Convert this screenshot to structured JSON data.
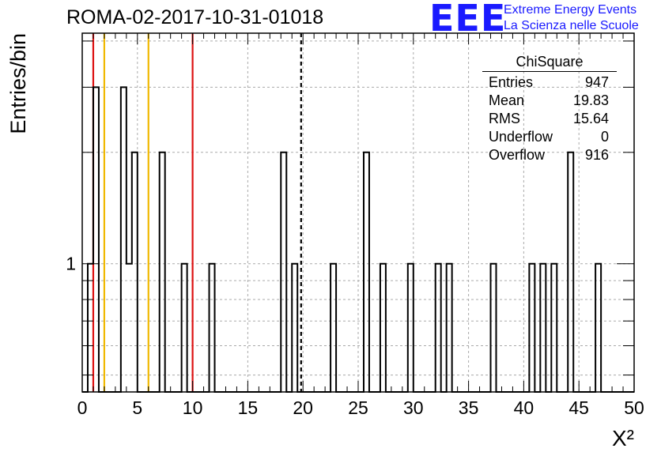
{
  "header": {
    "title": "ROMA-02-2017-10-31-01018",
    "logo_text": "EEE",
    "logo_line1": "Extreme Energy Events",
    "logo_line2": "La Scienza nelle Scuole"
  },
  "stats": {
    "title": "ChiSquare",
    "rows": [
      {
        "label": "Entries",
        "value": "947"
      },
      {
        "label": "Mean",
        "value": "19.83"
      },
      {
        "label": "RMS",
        "value": "15.64"
      },
      {
        "label": "Underflow",
        "value": "0"
      },
      {
        "label": "Overflow",
        "value": "916"
      }
    ]
  },
  "colors": {
    "red_line": "#dd1111",
    "yellow_line": "#f0b800",
    "grid": "#aaaaaa",
    "logo": "#1a1aff"
  },
  "chart_data": {
    "type": "bar",
    "title": "ROMA-02-2017-10-31-01018",
    "xlabel": "X²",
    "ylabel": "Entries/bin",
    "xlim": [
      0,
      50
    ],
    "ylim": [
      0.45,
      4.2
    ],
    "y_log_scale": true,
    "bin_width": 0.5,
    "grid": true,
    "x_ticks": [
      0,
      5,
      10,
      15,
      20,
      25,
      30,
      35,
      40,
      45,
      50
    ],
    "x_tick_labels": [
      "0",
      "5",
      "10",
      "15",
      "20",
      "25",
      "30",
      "35",
      "40",
      "45",
      "50"
    ],
    "y_ticks": [
      1
    ],
    "y_tick_labels": [
      "1"
    ],
    "bins": [
      {
        "x": 0.5,
        "count": 1
      },
      {
        "x": 1.0,
        "count": 3
      },
      {
        "x": 3.5,
        "count": 3
      },
      {
        "x": 4.0,
        "count": 1
      },
      {
        "x": 4.5,
        "count": 2
      },
      {
        "x": 7.0,
        "count": 2
      },
      {
        "x": 9.0,
        "count": 1
      },
      {
        "x": 11.5,
        "count": 1
      },
      {
        "x": 18.0,
        "count": 2
      },
      {
        "x": 19.0,
        "count": 1
      },
      {
        "x": 22.5,
        "count": 1
      },
      {
        "x": 25.5,
        "count": 2
      },
      {
        "x": 27.0,
        "count": 1
      },
      {
        "x": 29.5,
        "count": 1
      },
      {
        "x": 32.0,
        "count": 1
      },
      {
        "x": 33.0,
        "count": 1
      },
      {
        "x": 37.0,
        "count": 1
      },
      {
        "x": 40.5,
        "count": 1
      },
      {
        "x": 41.5,
        "count": 1
      },
      {
        "x": 42.5,
        "count": 1
      },
      {
        "x": 44.0,
        "count": 2
      },
      {
        "x": 46.5,
        "count": 1
      }
    ],
    "vertical_lines": [
      {
        "x": 1.0,
        "color": "red",
        "style": "solid"
      },
      {
        "x": 2.0,
        "color": "yellow",
        "style": "solid"
      },
      {
        "x": 6.0,
        "color": "yellow",
        "style": "solid"
      },
      {
        "x": 10.0,
        "color": "red",
        "style": "solid"
      },
      {
        "x": 19.83,
        "color": "black",
        "style": "dashed"
      }
    ]
  }
}
